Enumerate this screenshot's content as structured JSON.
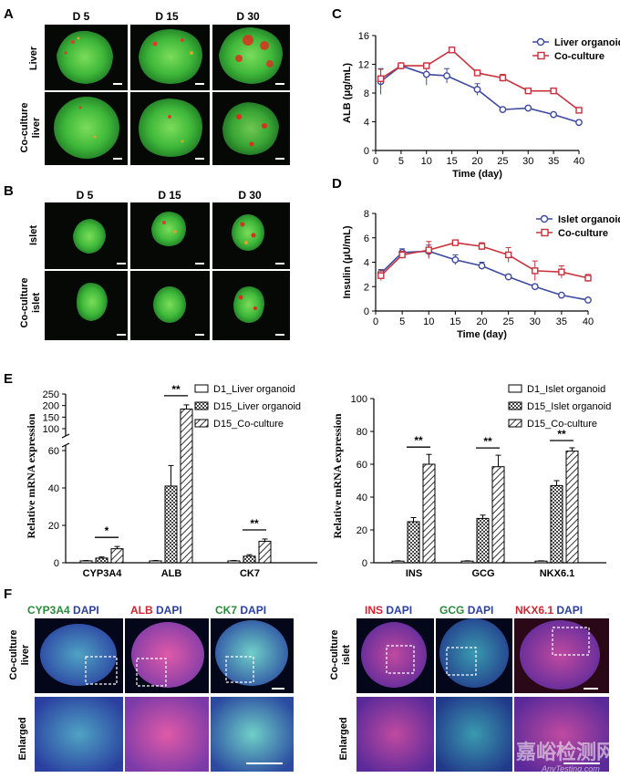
{
  "panel_labels": {
    "A": "A",
    "B": "B",
    "C": "C",
    "D": "D",
    "E": "E",
    "F": "F"
  },
  "panelA": {
    "cols": [
      "D 5",
      "D 15",
      "D 30"
    ],
    "rows": [
      "Liver",
      "Co-culture\nliver"
    ]
  },
  "panelB": {
    "cols": [
      "D 5",
      "D 15",
      "D 30"
    ],
    "rows": [
      "Islet",
      "Co-culture\nislet"
    ]
  },
  "panelF_left": {
    "titles": [
      {
        "a": "CYP3A4",
        "b": "DAPI",
        "ca": "#2a8a3a",
        "cb": "#2b3f9e"
      },
      {
        "a": "ALB",
        "b": "DAPI",
        "ca": "#d22430",
        "cb": "#2b3f9e"
      },
      {
        "a": "CK7",
        "b": "DAPI",
        "ca": "#2a8a3a",
        "cb": "#2b3f9e"
      }
    ],
    "rows": [
      "Co-culture\nliver",
      "Enlarged"
    ]
  },
  "panelF_right": {
    "titles": [
      {
        "a": "INS",
        "b": "DAPI",
        "ca": "#d22430",
        "cb": "#2b3f9e"
      },
      {
        "a": "GCG",
        "b": "DAPI",
        "ca": "#2a8a3a",
        "cb": "#2b3f9e"
      },
      {
        "a": "NKX6.1",
        "b": "DAPI",
        "ca": "#d22430",
        "cb": "#2b3f9e"
      }
    ],
    "rows": [
      "Co-culture\nislet",
      "Enlarged"
    ]
  },
  "watermark": {
    "cn": "嘉峪检测网",
    "en": "AnyTesting.com"
  },
  "colors": {
    "blue": "#3d4aa0",
    "red": "#c8323c"
  },
  "chart_data": [
    {
      "id": "C",
      "type": "line",
      "xlabel": "Time (day)",
      "ylabel": "ALB (μg/mL)",
      "xlim": [
        0,
        40
      ],
      "ylim": [
        0,
        16
      ],
      "xticks": [
        0,
        5,
        10,
        15,
        20,
        25,
        30,
        35,
        40
      ],
      "yticks": [
        0,
        4,
        8,
        12,
        16
      ],
      "series": [
        {
          "name": "Liver organoid",
          "color": "blue",
          "x": [
            1,
            5,
            10,
            14,
            20,
            25,
            30,
            35,
            40
          ],
          "y": [
            9.6,
            11.8,
            10.6,
            10.4,
            8.5,
            5.7,
            5.9,
            5.0,
            3.9
          ],
          "err": [
            1.8,
            0.3,
            1.5,
            1.0,
            0.8,
            0.3,
            0.3,
            0.3,
            0.3
          ]
        },
        {
          "name": "Co-culture",
          "color": "red",
          "x": [
            1,
            5,
            10,
            15,
            20,
            25,
            30,
            35,
            40
          ],
          "y": [
            10.0,
            11.8,
            11.8,
            14.0,
            10.8,
            10.1,
            8.3,
            8.3,
            5.6
          ],
          "err": [
            1.3,
            0.3,
            0.4,
            0.3,
            0.4,
            0.5,
            0.3,
            0.3,
            0.3
          ]
        }
      ]
    },
    {
      "id": "D",
      "type": "line",
      "xlabel": "Time (day)",
      "ylabel": "Insulin (μU/mL)",
      "xlim": [
        0,
        40
      ],
      "ylim": [
        0,
        8
      ],
      "xticks": [
        0,
        5,
        10,
        15,
        20,
        25,
        30,
        35,
        40
      ],
      "yticks": [
        0,
        2,
        4,
        6,
        8
      ],
      "series": [
        {
          "name": "Islet organoid",
          "color": "blue",
          "x": [
            1,
            5,
            10,
            15,
            20,
            25,
            30,
            35,
            40
          ],
          "y": [
            3.1,
            4.8,
            4.9,
            4.2,
            3.7,
            2.8,
            2.0,
            1.3,
            0.9
          ],
          "err": [
            0.3,
            0.3,
            0.5,
            0.4,
            0.3,
            0.2,
            0.2,
            0.1,
            0.1
          ]
        },
        {
          "name": "Co-culture",
          "color": "red",
          "x": [
            1,
            5,
            10,
            15,
            20,
            25,
            30,
            35,
            40
          ],
          "y": [
            2.9,
            4.6,
            5.0,
            5.6,
            5.3,
            4.6,
            3.3,
            3.2,
            2.7
          ],
          "err": [
            0.4,
            0.3,
            0.7,
            0.2,
            0.3,
            0.6,
            0.8,
            0.5,
            0.3
          ]
        }
      ]
    },
    {
      "id": "E1",
      "type": "bar",
      "ylabel": "Relative mRNA expression",
      "categories": [
        "CYP3A4",
        "ALB",
        "CK7"
      ],
      "yticks_lower": [
        0,
        20,
        40,
        60
      ],
      "yticks_upper": [
        100,
        150,
        200,
        250
      ],
      "series": [
        {
          "name": "D1_Liver organoid",
          "values": [
            1,
            1,
            1
          ],
          "err": [
            0.2,
            0.2,
            0.2
          ]
        },
        {
          "name": "D15_Liver organoid",
          "values": [
            2.5,
            41,
            3.5
          ],
          "err": [
            0.6,
            11,
            0.8
          ]
        },
        {
          "name": "D15_Co-culture",
          "values": [
            7.5,
            185,
            11.5
          ],
          "err": [
            1.2,
            18,
            1.2
          ]
        }
      ],
      "significance": [
        {
          "cat": 0,
          "label": "*"
        },
        {
          "cat": 1,
          "label": "**"
        },
        {
          "cat": 2,
          "label": "**"
        }
      ]
    },
    {
      "id": "E2",
      "type": "bar",
      "ylabel": "Relative mRNA expression",
      "categories": [
        "INS",
        "GCG",
        "NKX6.1"
      ],
      "ylim": [
        0,
        100
      ],
      "yticks": [
        0,
        20,
        40,
        60,
        80,
        100
      ],
      "series": [
        {
          "name": "D1_Islet organoid",
          "values": [
            1,
            1,
            1
          ],
          "err": [
            0.2,
            0.2,
            0.2
          ]
        },
        {
          "name": "D15_Islet organoid",
          "values": [
            25,
            27,
            47
          ],
          "err": [
            2.5,
            2,
            3
          ]
        },
        {
          "name": "D15_Co-culture",
          "values": [
            60,
            58.5,
            68
          ],
          "err": [
            6,
            7,
            2
          ]
        }
      ],
      "significance": [
        {
          "cat": 0,
          "label": "**"
        },
        {
          "cat": 1,
          "label": "**"
        },
        {
          "cat": 2,
          "label": "**"
        }
      ]
    }
  ]
}
